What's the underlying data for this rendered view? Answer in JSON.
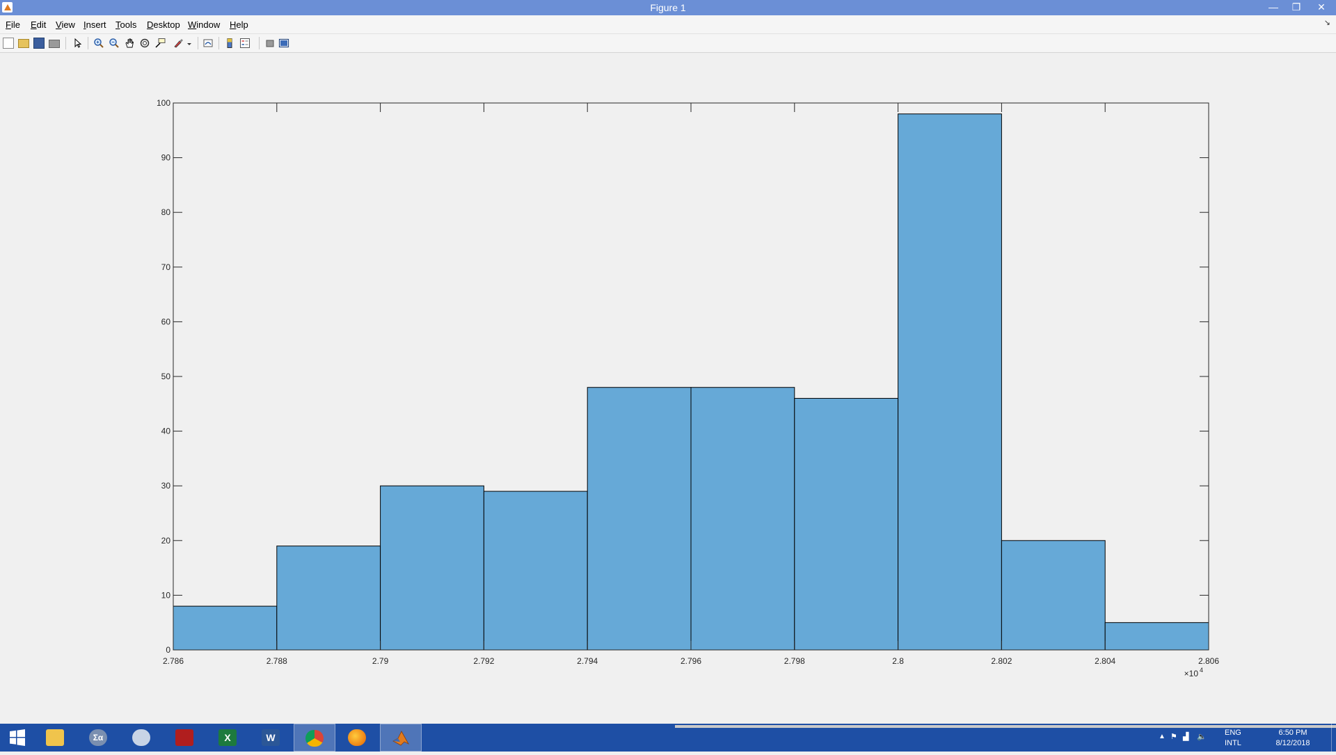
{
  "window": {
    "title": "Figure 1",
    "minimize_glyph": "—",
    "restore_glyph": "❐",
    "close_glyph": "✕"
  },
  "menu": {
    "items": [
      {
        "label": "File"
      },
      {
        "label": "Edit"
      },
      {
        "label": "View"
      },
      {
        "label": "Insert"
      },
      {
        "label": "Tools"
      },
      {
        "label": "Desktop"
      },
      {
        "label": "Window"
      },
      {
        "label": "Help"
      }
    ],
    "dock_glyph": "↘"
  },
  "toolbar": {
    "tools": [
      {
        "icon": "new-figure-icon"
      },
      {
        "icon": "open-file-icon"
      },
      {
        "icon": "save-icon"
      },
      {
        "icon": "print-icon"
      },
      {
        "icon": "edit-plot-icon"
      },
      {
        "icon": "zoom-in-icon"
      },
      {
        "icon": "zoom-out-icon"
      },
      {
        "icon": "pan-icon"
      },
      {
        "icon": "rotate-3d-icon"
      },
      {
        "icon": "data-cursor-icon"
      },
      {
        "icon": "brush-icon"
      },
      {
        "icon": "link-plot-icon"
      },
      {
        "icon": "insert-colorbar-icon"
      },
      {
        "icon": "insert-legend-icon"
      },
      {
        "icon": "hide-plot-tools-icon"
      },
      {
        "icon": "show-plot-tools-icon"
      }
    ]
  },
  "chart_data": {
    "type": "bar",
    "subtype": "histogram",
    "bin_edges": [
      2.786,
      2.788,
      2.79,
      2.792,
      2.794,
      2.796,
      2.798,
      2.8,
      2.802,
      2.804,
      2.806
    ],
    "values": [
      8,
      19,
      30,
      29,
      48,
      48,
      46,
      98,
      20,
      5
    ],
    "title": "",
    "xlabel": "",
    "ylabel": "",
    "xlim": [
      2.786,
      2.806
    ],
    "ylim": [
      0,
      100
    ],
    "xticks": [
      "2.786",
      "2.788",
      "2.79",
      "2.792",
      "2.794",
      "2.796",
      "2.798",
      "2.8",
      "2.802",
      "2.804",
      "2.806"
    ],
    "yticks": [
      "0",
      "10",
      "20",
      "30",
      "40",
      "50",
      "60",
      "70",
      "80",
      "90",
      "100"
    ],
    "x_exponent_label": "×10",
    "x_exponent": "4",
    "bar_color": "#66a9d7",
    "edge_color": "#000000",
    "grid": false
  },
  "taskbar": {
    "apps": [
      {
        "icon": "file-explorer-icon",
        "label": ""
      },
      {
        "icon": "maple-icon",
        "label": "Σα"
      },
      {
        "icon": "snipping-tool-icon",
        "label": ""
      },
      {
        "icon": "acrobat-icon",
        "label": ""
      },
      {
        "icon": "excel-icon",
        "label": "X"
      },
      {
        "icon": "word-icon",
        "label": "W"
      },
      {
        "icon": "chrome-icon",
        "label": ""
      },
      {
        "icon": "firefox-icon",
        "label": ""
      },
      {
        "icon": "matlab-icon",
        "label": ""
      }
    ],
    "tray": {
      "lang_top": "ENG",
      "lang_bottom": "INTL",
      "time": "6:50 PM",
      "date": "8/12/2018"
    }
  },
  "colors": {
    "titlebar": "#6b8fd6",
    "taskbar": "#1e4fa5",
    "bars": "#66a9d7"
  }
}
